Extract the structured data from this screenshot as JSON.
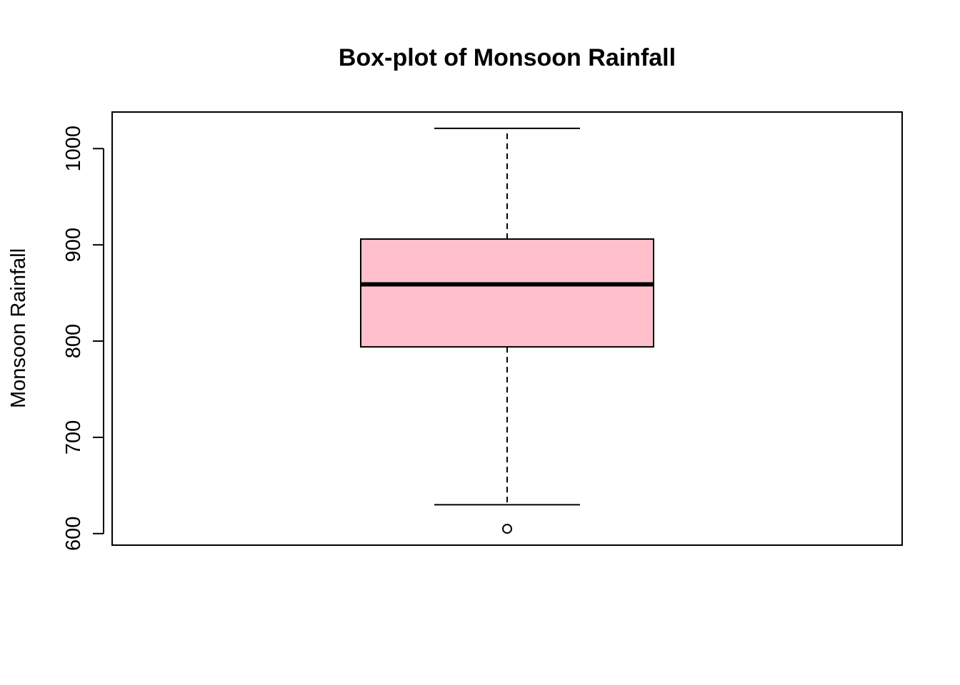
{
  "chart_data": {
    "type": "box",
    "title": "Box-plot of Monsoon Rainfall",
    "xlabel": "",
    "ylabel": "Monsoon Rainfall",
    "ylim": [
      588,
      1038
    ],
    "yticks": [
      600,
      700,
      800,
      900,
      1000
    ],
    "grid": false,
    "legend": "none",
    "box": {
      "whisker_low": 630,
      "q1": 794,
      "median": 859,
      "q3": 906,
      "whisker_high": 1021,
      "outliers": [
        605
      ]
    },
    "colors": {
      "box_fill": "#ffc0cb",
      "stroke": "#000000"
    }
  }
}
